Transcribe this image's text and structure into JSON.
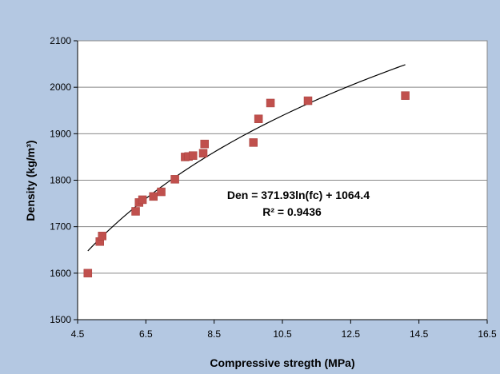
{
  "chart_data": {
    "type": "scatter",
    "title": "",
    "xlabel": "Compressive stregth  (MPa)",
    "ylabel": "Density (kg/m³)",
    "xlim": [
      4.5,
      16.5
    ],
    "ylim": [
      1500,
      2100
    ],
    "xticks": [
      "4.5",
      "6.5",
      "8.5",
      "10.5",
      "12.5",
      "14.5",
      "16.5"
    ],
    "yticks": [
      "1500",
      "1600",
      "1700",
      "1800",
      "1900",
      "2000",
      "2100"
    ],
    "grid": "horizontal",
    "legend": "none",
    "colors": {
      "frame_bg": "#b4c8e2",
      "plot_bg": "#ffffff",
      "marker": "#c0504d",
      "trendline": "#000000",
      "grid": "#878787"
    },
    "series": [
      {
        "marker": "square",
        "points": [
          [
            4.8,
            1600
          ],
          [
            5.15,
            1668
          ],
          [
            5.22,
            1680
          ],
          [
            6.2,
            1733
          ],
          [
            6.3,
            1752
          ],
          [
            6.4,
            1758
          ],
          [
            6.72,
            1765
          ],
          [
            6.95,
            1775
          ],
          [
            7.35,
            1802
          ],
          [
            7.65,
            1850
          ],
          [
            7.75,
            1851
          ],
          [
            7.88,
            1853
          ],
          [
            8.18,
            1858
          ],
          [
            8.22,
            1878
          ],
          [
            9.65,
            1881
          ],
          [
            9.8,
            1932
          ],
          [
            10.15,
            1966
          ],
          [
            11.25,
            1971
          ],
          [
            14.1,
            1982
          ]
        ]
      }
    ],
    "trendline": {
      "type": "logarithmic",
      "a": 371.93,
      "b": 1064.4,
      "x_from": 4.8,
      "x_to": 14.1
    },
    "annotations": {
      "equation": "Den = 371.93ln(fc) + 1064.4",
      "r_squared": "R² = 0.9436"
    }
  }
}
